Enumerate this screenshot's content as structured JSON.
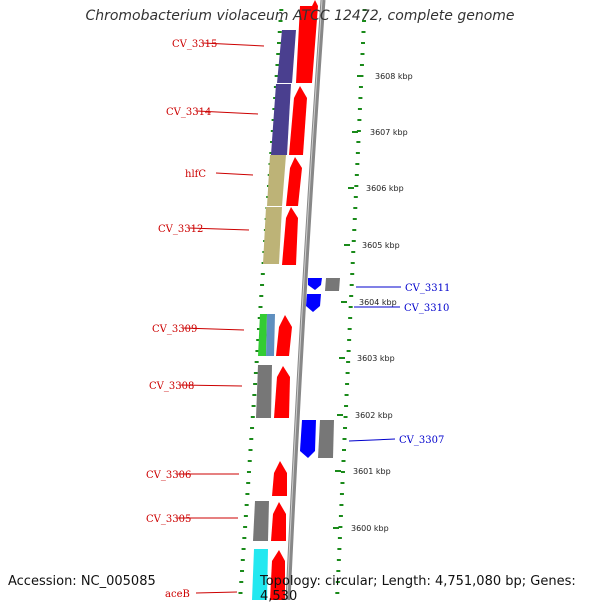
{
  "title": "Chromobacterium violaceum ATCC 12472, complete genome",
  "footer": {
    "accession": "Accession: NC_005085",
    "topology": "Topology: circular; Length: 4,751,080 bp; Genes: 4,530"
  },
  "colors": {
    "forward_cds": "#ff0000",
    "reverse_cds": "#0000ff",
    "backbone": "#888888",
    "tick": "#1a8a1a",
    "label_forward": "#cc0000",
    "label_reverse": "#0000cc"
  },
  "kbp_labels": [
    "3608 kbp",
    "3607 kbp",
    "3606 kbp",
    "3605 kbp",
    "3604 kbp",
    "3603 kbp",
    "3602 kbp",
    "3601 kbp",
    "3600 kbp"
  ],
  "gene_labels_left": [
    "CV_3315",
    "CV_3314",
    "hlfC",
    "CV_3312",
    "CV_3309",
    "CV_3308",
    "CV_3306",
    "CV_3305",
    "aceB"
  ],
  "gene_labels_right": [
    "CV_3311",
    "CV_3310",
    "CV_3307"
  ]
}
